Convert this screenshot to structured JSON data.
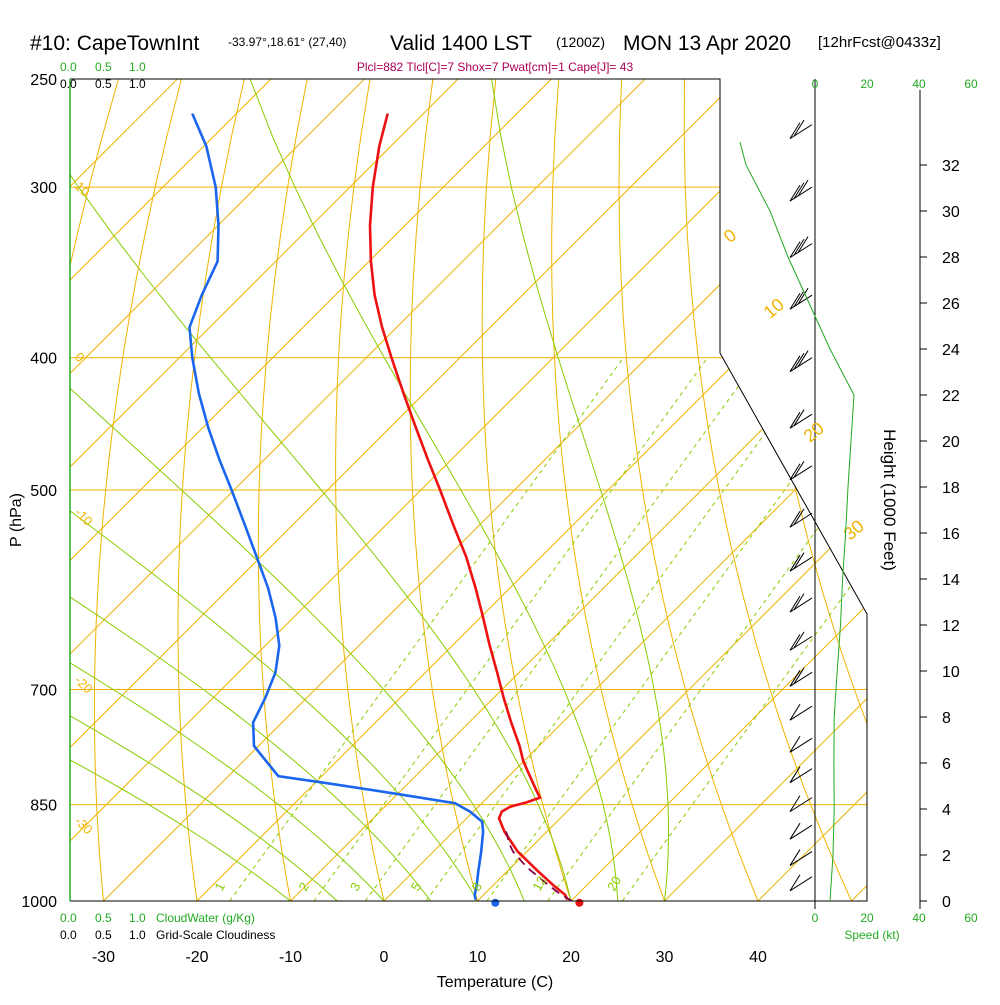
{
  "header": {
    "station": "#10: CapeTownInt",
    "coords": "-33.97°,18.61° (27,40)",
    "valid": "Valid 1400 LST",
    "zulu": "(1200Z)",
    "date": "MON 13 Apr 2020",
    "forecast": "[12hrFcst@0433z]",
    "indices": "Plcl=882 Tlcl[C]=7 Shox=7 Pwat[cm]=1 Cape[J]= 43"
  },
  "colors": {
    "isotherm": "#f0b400",
    "dry_adiabat": "#f0b400",
    "moist_adiabat": "#88cc00",
    "mixing_ratio": "#88cc00",
    "temperature": "#ee1111",
    "dewpoint": "#1a66ee",
    "parcel": "#880044",
    "green_text": "#22aa22",
    "indices_text": "#aa0055",
    "axis": "#000000"
  },
  "chart_data": {
    "type": "line",
    "title": "#10: CapeTownInt Valid 1400 LST MON 13 Apr 2020",
    "xlabel": "Temperature (C)",
    "ylabel": "P (hPa)",
    "height_label": "Height (1000 Feet)",
    "xlim": [
      -33.7,
      36
    ],
    "plim": [
      250,
      1000
    ],
    "x_ticks": [
      "-30",
      "-20",
      "-10",
      "0",
      "10",
      "20",
      "30",
      "40"
    ],
    "x_tick_values": [
      -30,
      -20,
      -10,
      0,
      10,
      20,
      30,
      40
    ],
    "p_ticks": [
      "250",
      "300",
      "400",
      "500",
      "700",
      "850",
      "1000"
    ],
    "p_tick_values": [
      250,
      300,
      400,
      500,
      700,
      850,
      1000
    ],
    "height_ticks": [
      "0",
      "2",
      "4",
      "6",
      "8",
      "10",
      "12",
      "14",
      "16",
      "18",
      "20",
      "22",
      "24",
      "26",
      "28",
      "30",
      "32"
    ],
    "height_tick_values": [
      0,
      2,
      4,
      6,
      8,
      10,
      12,
      14,
      16,
      18,
      20,
      22,
      24,
      26,
      28,
      30,
      32
    ],
    "series": [
      {
        "name": "Temperature",
        "points": [
          [
            0.4,
            265
          ],
          [
            -0.5,
            280
          ],
          [
            -1.2,
            300
          ],
          [
            -1.5,
            320
          ],
          [
            -1.4,
            340
          ],
          [
            -1.0,
            360
          ],
          [
            -0.2,
            380
          ],
          [
            0.8,
            400
          ],
          [
            2.1,
            425
          ],
          [
            3.4,
            450
          ],
          [
            4.7,
            475
          ],
          [
            6.0,
            500
          ],
          [
            7.4,
            530
          ],
          [
            8.8,
            560
          ],
          [
            9.8,
            590
          ],
          [
            10.6,
            620
          ],
          [
            11.3,
            650
          ],
          [
            12.1,
            680
          ],
          [
            12.8,
            710
          ],
          [
            13.6,
            740
          ],
          [
            14.5,
            770
          ],
          [
            14.9,
            790
          ],
          [
            15.6,
            810
          ],
          [
            16.3,
            830
          ],
          [
            16.7,
            840
          ],
          [
            15.2,
            847
          ],
          [
            13.5,
            853
          ],
          [
            12.6,
            860
          ],
          [
            12.3,
            870
          ],
          [
            12.9,
            890
          ],
          [
            14.3,
            920
          ],
          [
            16.4,
            950
          ],
          [
            18.2,
            975
          ],
          [
            19.4,
            990
          ],
          [
            19.6,
            998
          ]
        ]
      },
      {
        "name": "Dewpoint",
        "points": [
          [
            -20.5,
            265
          ],
          [
            -19.0,
            280
          ],
          [
            -18.0,
            300
          ],
          [
            -17.7,
            320
          ],
          [
            -17.8,
            340
          ],
          [
            -19.5,
            360
          ],
          [
            -20.8,
            380
          ],
          [
            -20.5,
            400
          ],
          [
            -19.8,
            425
          ],
          [
            -18.8,
            450
          ],
          [
            -17.6,
            475
          ],
          [
            -16.3,
            500
          ],
          [
            -14.9,
            530
          ],
          [
            -13.6,
            560
          ],
          [
            -12.4,
            590
          ],
          [
            -11.6,
            620
          ],
          [
            -11.2,
            650
          ],
          [
            -11.6,
            680
          ],
          [
            -12.7,
            710
          ],
          [
            -14.0,
            740
          ],
          [
            -13.9,
            770
          ],
          [
            -12.6,
            790
          ],
          [
            -11.3,
            810
          ],
          [
            -6.0,
            820
          ],
          [
            2.0,
            836
          ],
          [
            7.6,
            848
          ],
          [
            9.2,
            860
          ],
          [
            10.5,
            875
          ],
          [
            10.6,
            890
          ],
          [
            10.4,
            920
          ],
          [
            10.1,
            950
          ],
          [
            9.9,
            975
          ],
          [
            9.7,
            990
          ],
          [
            9.8,
            998
          ]
        ]
      },
      {
        "name": "Parcel",
        "style": "dashed",
        "points": [
          [
            20.1,
            1000
          ],
          [
            18.8,
            988
          ],
          [
            17.3,
            970
          ],
          [
            15.3,
            945
          ],
          [
            13.8,
            920
          ],
          [
            13.3,
            905
          ],
          [
            13.2,
            895
          ],
          [
            12.8,
            882
          ]
        ]
      }
    ],
    "surface_markers": [
      {
        "name": "surface-temperature",
        "temp": 20.9,
        "pressure": 1003
      },
      {
        "name": "surface-dewpoint",
        "temp": 11.9,
        "pressure": 1003
      }
    ],
    "isotherm_labels": [
      {
        "text": "0",
        "temp": 0
      },
      {
        "text": "10",
        "temp": 10
      },
      {
        "text": "20",
        "temp": 20
      },
      {
        "text": "30",
        "temp": 30
      }
    ],
    "dry_adiabat_labels": [
      {
        "text": "10",
        "pressure": 300
      },
      {
        "text": "0",
        "pressure": 400
      },
      {
        "text": "-10",
        "pressure": 520
      },
      {
        "text": "-20",
        "pressure": 690
      },
      {
        "text": "-30",
        "pressure": 875
      }
    ],
    "mixing_ratio_labels": [
      {
        "text": "1",
        "temp": -16.5
      },
      {
        "text": "2",
        "temp": -7.5
      },
      {
        "text": "3",
        "temp": -2.0
      },
      {
        "text": "5",
        "temp": 4.5
      },
      {
        "text": "8",
        "temp": 11.0
      },
      {
        "text": "12",
        "temp": 17.5
      },
      {
        "text": "20",
        "temp": 25.5
      }
    ],
    "height_profile": [
      [
        0,
        920
      ],
      [
        2,
        930
      ],
      [
        4,
        934
      ],
      [
        6,
        933
      ],
      [
        8,
        934
      ],
      [
        10,
        944
      ],
      [
        12,
        955
      ],
      [
        14,
        962
      ],
      [
        16,
        972
      ],
      [
        18,
        980
      ],
      [
        20,
        990
      ],
      [
        22,
        1000
      ],
      [
        24,
        920
      ],
      [
        26,
        850
      ],
      [
        28,
        780
      ],
      [
        30,
        720
      ],
      [
        32,
        640
      ],
      [
        33,
        620
      ]
    ],
    "wind_speed_axis": {
      "ticks": [
        "0",
        "20",
        "40",
        "60"
      ],
      "values": [
        0,
        20,
        40,
        60
      ],
      "label": "Speed (kt)"
    },
    "cloud_water": {
      "label": "CloudWater (g/Kg)",
      "ticks": [
        "0.0",
        "0.5",
        "1.0"
      ]
    },
    "cloudiness": {
      "label": "Grid-Scale Cloudiness",
      "ticks": [
        "0.0",
        "0.5",
        "1.0"
      ]
    },
    "wind_profile": [
      {
        "p": 270,
        "barbs": 2
      },
      {
        "p": 300,
        "barbs": 3
      },
      {
        "p": 330,
        "barbs": 3
      },
      {
        "p": 360,
        "barbs": 3
      },
      {
        "p": 400,
        "barbs": 3
      },
      {
        "p": 440,
        "barbs": 2
      },
      {
        "p": 480,
        "barbs": 2
      },
      {
        "p": 520,
        "barbs": 2
      },
      {
        "p": 560,
        "barbs": 2
      },
      {
        "p": 600,
        "barbs": 2
      },
      {
        "p": 640,
        "barbs": 2
      },
      {
        "p": 680,
        "barbs": 2
      },
      {
        "p": 720,
        "barbs": 1
      },
      {
        "p": 760,
        "barbs": 1
      },
      {
        "p": 800,
        "barbs": 1
      },
      {
        "p": 840,
        "barbs": 1
      },
      {
        "p": 880,
        "barbs": 1
      },
      {
        "p": 920,
        "barbs": 1
      },
      {
        "p": 960,
        "barbs": 1
      }
    ]
  }
}
